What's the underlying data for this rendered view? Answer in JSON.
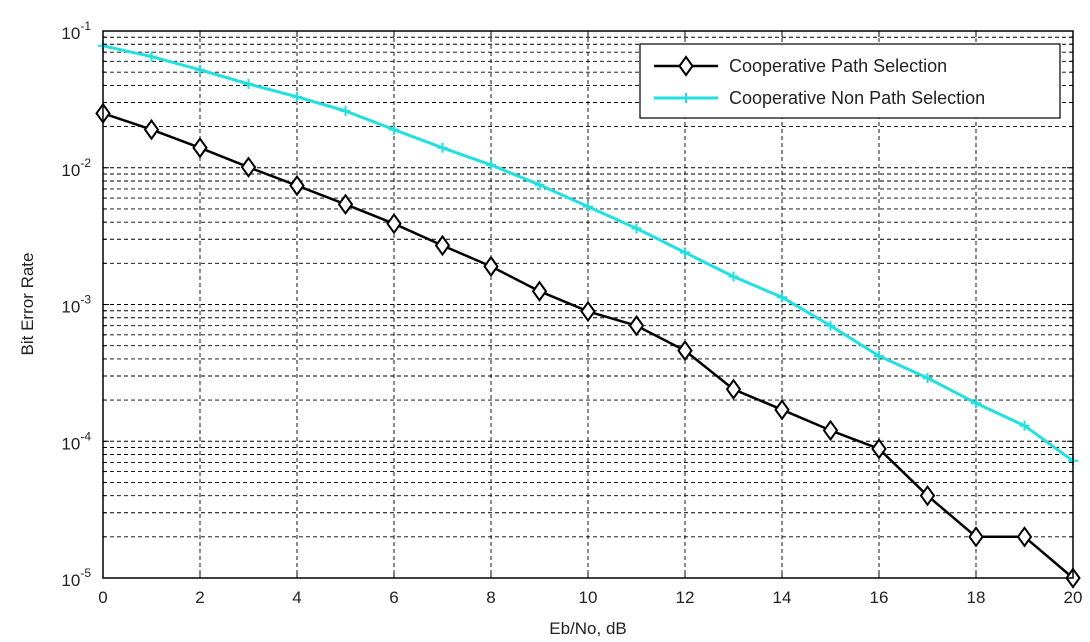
{
  "chart_data": {
    "type": "line",
    "title": "",
    "xlabel": "Eb/No, dB",
    "ylabel": "Bit Error Rate",
    "yscale": "log",
    "xlim": [
      0,
      20
    ],
    "ylim": [
      1e-05,
      0.1
    ],
    "grid": true,
    "legend_position": "top-right",
    "x_ticks": [
      "0",
      "2",
      "4",
      "6",
      "8",
      "10",
      "12",
      "14",
      "16",
      "18",
      "20"
    ],
    "y_ticks": [
      {
        "base": "10",
        "exp": "-5",
        "value": 1e-05
      },
      {
        "base": "10",
        "exp": "-4",
        "value": 0.0001
      },
      {
        "base": "10",
        "exp": "-3",
        "value": 0.001
      },
      {
        "base": "10",
        "exp": "-2",
        "value": 0.01
      },
      {
        "base": "10",
        "exp": "-1",
        "value": 0.1
      }
    ],
    "x": [
      0,
      1,
      2,
      3,
      4,
      5,
      6,
      7,
      8,
      9,
      10,
      11,
      12,
      13,
      14,
      15,
      16,
      17,
      18,
      19,
      20
    ],
    "series": [
      {
        "name": "Cooperative Path Selection",
        "color": "#000000",
        "marker": "diamond",
        "values": [
          0.025,
          0.019,
          0.014,
          0.0101,
          0.0074,
          0.0054,
          0.0039,
          0.0027,
          0.0019,
          0.00125,
          0.00089,
          0.0007,
          0.00046,
          0.00024,
          0.00017,
          0.00012,
          8.8e-05,
          4e-05,
          2e-05,
          2e-05,
          1e-05
        ]
      },
      {
        "name": "Cooperative Non Path Selection",
        "color": "#22e0e0",
        "marker": "plus",
        "values": [
          0.078,
          0.065,
          0.052,
          0.041,
          0.033,
          0.026,
          0.019,
          0.014,
          0.0105,
          0.0075,
          0.0052,
          0.0036,
          0.0024,
          0.0016,
          0.00113,
          0.0007,
          0.00042,
          0.00029,
          0.00019,
          0.00013,
          7.2e-05
        ]
      }
    ]
  }
}
